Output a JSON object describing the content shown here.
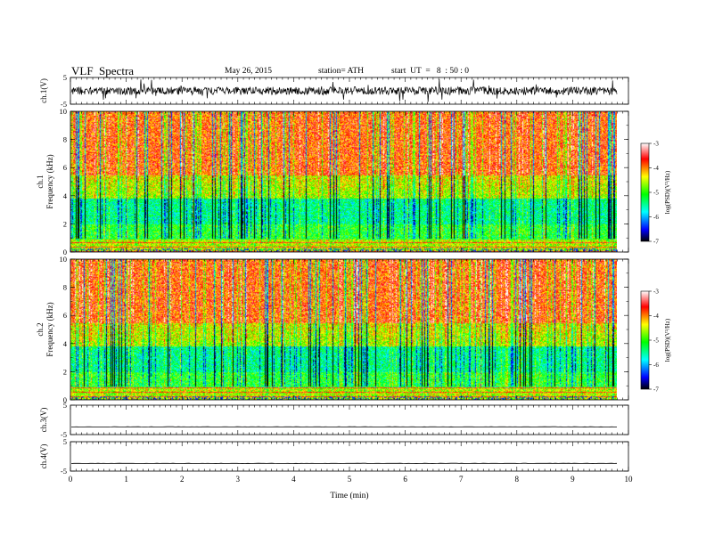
{
  "header": {
    "title": "VLF  Spectra",
    "date": "May 26, 2015",
    "station": "station= ATH",
    "start": "start  UT  =   8  : 50 : 0"
  },
  "chart_data": {
    "type": "heatmap",
    "x": {
      "label": "Time  (min)",
      "range": [
        0,
        10
      ],
      "ticks": [
        "0",
        "1",
        "2",
        "3",
        "4",
        "5",
        "6",
        "7",
        "8",
        "9",
        "10"
      ],
      "data_end": 9.8
    },
    "panels": [
      {
        "kind": "waveform",
        "ylabel": "ch.1(V)",
        "yrange": [
          -5,
          5
        ],
        "yticks": [
          "5",
          "-5"
        ],
        "description": "noisy broadband signal, mostly within about ±1 V with frequent spikes"
      },
      {
        "kind": "spectrogram",
        "ylabel": "ch.1\nFrequency  (kHz)",
        "yrange": [
          0,
          10
        ],
        "yticks": [
          "0",
          "2",
          "4",
          "6",
          "8",
          "10"
        ],
        "colorbar": {
          "label": "log(PSD)(V²/Hz)",
          "range": [
            -7,
            -3
          ],
          "ticks": [
            "-3",
            "-4",
            "-5",
            "-6",
            "-7"
          ]
        }
      },
      {
        "kind": "spectrogram",
        "ylabel": "ch.2\nFrequency  (kHz)",
        "yrange": [
          0,
          10
        ],
        "yticks": [
          "0",
          "2",
          "4",
          "6",
          "8",
          "10"
        ],
        "colorbar": {
          "label": "log(PSD)(V²/Hz)",
          "range": [
            -7,
            -3
          ],
          "ticks": [
            "-3",
            "-4",
            "-5",
            "-6",
            "-7"
          ]
        }
      },
      {
        "kind": "waveform",
        "ylabel": "ch.3(V)",
        "yrange": [
          -5,
          5
        ],
        "yticks": [
          "5",
          "-5"
        ],
        "description": "flat trace near -1 V"
      },
      {
        "kind": "waveform",
        "ylabel": "ch.4(V)",
        "yrange": [
          -5,
          5
        ],
        "yticks": [
          "5",
          "-5"
        ],
        "description": "flat trace near -1 V"
      }
    ],
    "colormap": [
      "#000000",
      "#0000ff",
      "#00ffff",
      "#00ff00",
      "#ffff00",
      "#ff0000",
      "#ffffff"
    ]
  }
}
